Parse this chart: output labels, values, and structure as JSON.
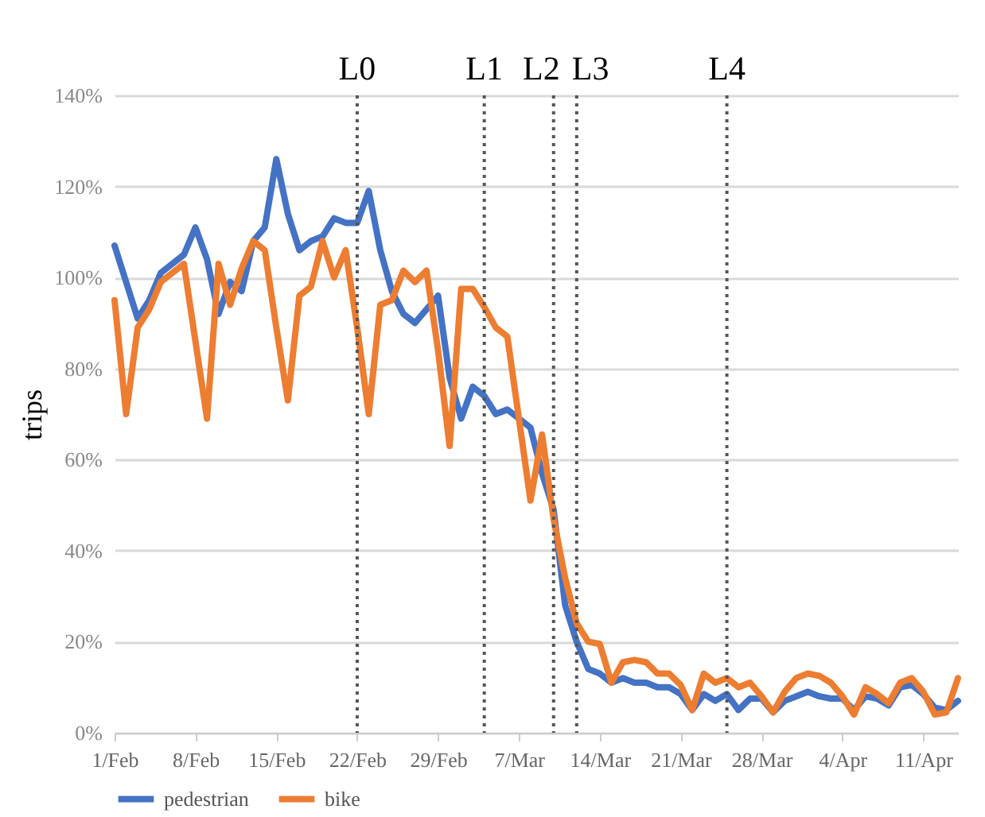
{
  "chart_data": {
    "type": "line",
    "ylabel": "trips",
    "x": [
      "--02-01",
      "--02-02",
      "--02-03",
      "--02-04",
      "--02-05",
      "--02-06",
      "--02-07",
      "--02-08",
      "--02-09",
      "--02-10",
      "--02-11",
      "--02-12",
      "--02-13",
      "--02-14",
      "--02-15",
      "--02-16",
      "--02-17",
      "--02-18",
      "--02-19",
      "--02-20",
      "--02-21",
      "--02-22",
      "--02-23",
      "--02-24",
      "--02-25",
      "--02-26",
      "--02-27",
      "--02-28",
      "--02-29",
      "--03-01",
      "--03-02",
      "--03-03",
      "--03-04",
      "--03-05",
      "--03-06",
      "--03-07",
      "--03-08",
      "--03-09",
      "--03-10",
      "--03-11",
      "--03-12",
      "--03-13",
      "--03-14",
      "--03-15",
      "--03-16",
      "--03-17",
      "--03-18",
      "--03-19",
      "--03-20",
      "--03-21",
      "--03-22",
      "--03-23",
      "--03-24",
      "--03-25",
      "--03-26",
      "--03-27",
      "--03-28",
      "--03-29",
      "--03-30",
      "--03-31",
      "--04-01",
      "--04-02",
      "--04-03",
      "--04-04",
      "--04-05",
      "--04-06",
      "--04-07",
      "--04-08",
      "--04-09",
      "--04-10",
      "--04-11",
      "--04-12",
      "--04-13",
      "--04-14"
    ],
    "series": [
      {
        "name": "pedestrian",
        "color": "#4472c4",
        "values": [
          107,
          99,
          91,
          95,
          101,
          103,
          105,
          111,
          104,
          92,
          99,
          97,
          108,
          111,
          126,
          114,
          106,
          108,
          109,
          113,
          112,
          112,
          119,
          106,
          97,
          92,
          90,
          93,
          96,
          78,
          69,
          76,
          74,
          70,
          71,
          69,
          67,
          57,
          49,
          28,
          20,
          14,
          13,
          11,
          12,
          11,
          11,
          10,
          10,
          8.5,
          5,
          8.5,
          7,
          8.5,
          5,
          7.5,
          7.5,
          4.5,
          7,
          8,
          9,
          8,
          7.5,
          7.5,
          5,
          8,
          7.5,
          6,
          10,
          10.5,
          8.5,
          5.5,
          5,
          7
        ]
      },
      {
        "name": "bike",
        "color": "#ed7d31",
        "values": [
          95,
          70,
          89,
          93,
          99,
          101,
          103,
          86,
          69,
          103,
          94,
          102,
          108,
          106,
          89,
          73,
          96,
          98,
          108,
          100,
          106,
          89,
          70,
          94,
          95,
          101.5,
          99,
          101.5,
          84,
          63,
          97.5,
          97.5,
          93.5,
          89,
          87,
          69,
          51,
          65.5,
          47,
          34,
          24,
          20,
          19.5,
          11,
          15.5,
          16,
          15.5,
          13,
          13,
          10.5,
          5,
          13,
          11,
          12,
          10,
          11,
          8,
          4.5,
          9,
          12,
          13,
          12.5,
          11,
          8,
          4,
          10,
          8.5,
          6.5,
          11,
          12,
          9,
          4,
          4.5,
          12
        ]
      }
    ],
    "xlim": [
      "--02-01",
      "--04-14"
    ],
    "xticks": [
      {
        "value": "--02-01",
        "label": "1/Feb"
      },
      {
        "value": "--02-08",
        "label": "8/Feb"
      },
      {
        "value": "--02-15",
        "label": "15/Feb"
      },
      {
        "value": "--02-22",
        "label": "22/Feb"
      },
      {
        "value": "--02-29",
        "label": "29/Feb"
      },
      {
        "value": "--03-07",
        "label": "7/Mar"
      },
      {
        "value": "--03-14",
        "label": "14/Mar"
      },
      {
        "value": "--03-21",
        "label": "21/Mar"
      },
      {
        "value": "--03-28",
        "label": "28/Mar"
      },
      {
        "value": "--04-04",
        "label": "4/Apr"
      },
      {
        "value": "--04-11",
        "label": "11/Apr"
      }
    ],
    "ylim": [
      0,
      140
    ],
    "yticks": [
      {
        "value": 0,
        "label": "0%"
      },
      {
        "value": 20,
        "label": "20%"
      },
      {
        "value": 40,
        "label": "40%"
      },
      {
        "value": 60,
        "label": "60%"
      },
      {
        "value": 80,
        "label": "80%"
      },
      {
        "value": 100,
        "label": "100%"
      },
      {
        "value": 120,
        "label": "120%"
      },
      {
        "value": 140,
        "label": "140%"
      }
    ],
    "ref_lines": [
      {
        "axis": "x",
        "value": "--02-22",
        "label": "L0",
        "color": "#555555",
        "line_style": "dotted"
      },
      {
        "axis": "x",
        "value": "--03-04",
        "label": "L1",
        "color": "#555555",
        "line_style": "dotted"
      },
      {
        "axis": "x",
        "value": "--03-10",
        "label": "L2",
        "color": "#555555",
        "line_style": "dotted"
      },
      {
        "axis": "x",
        "value": "--03-12",
        "label": "L3",
        "color": "#555555",
        "line_style": "dotted"
      },
      {
        "axis": "x",
        "value": "--03-25",
        "label": "L4",
        "color": "#555555",
        "line_style": "dotted"
      }
    ],
    "grid": "y",
    "legend": "bottom",
    "line_style": "solid",
    "marker": "none"
  }
}
